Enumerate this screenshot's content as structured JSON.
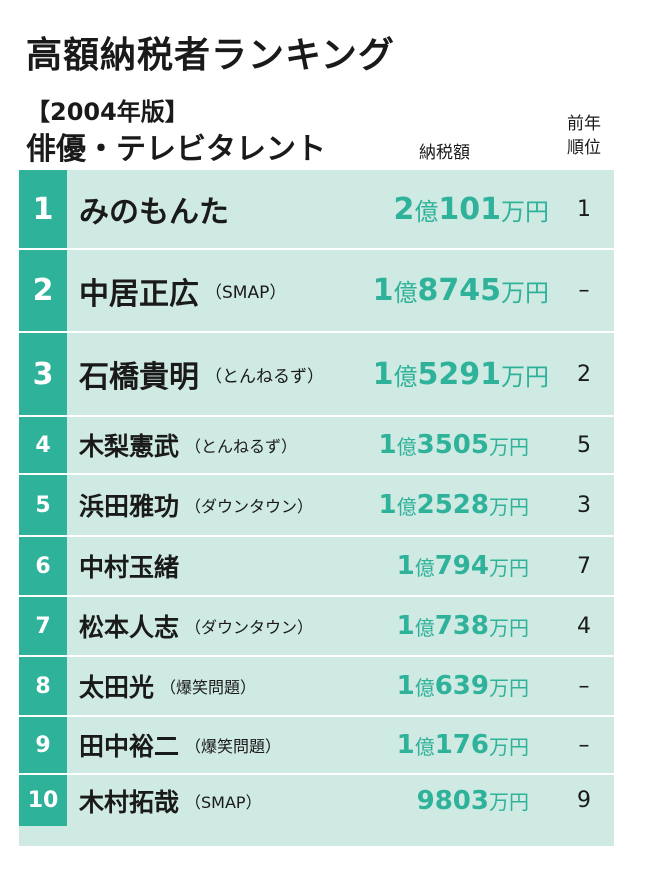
{
  "header": {
    "title": "高額納税者ランキング",
    "year": "【2004年版】",
    "category": "俳優・テレビタレント",
    "col_tax": "納税額",
    "col_prev_line1": "前年",
    "col_prev_line2": "順位"
  },
  "colors": {
    "accent": "#2fb29a",
    "row_bg": "#cfe9e3"
  },
  "rows": [
    {
      "rank": "1",
      "name": "みのもんた",
      "group": "",
      "amount_oku": "2",
      "oku": "億",
      "amount_man": "101",
      "man": "万円",
      "prev": "1"
    },
    {
      "rank": "2",
      "name": "中居正広",
      "group": "（SMAP）",
      "amount_oku": "1",
      "oku": "億",
      "amount_man": "8745",
      "man": "万円",
      "prev": "–"
    },
    {
      "rank": "3",
      "name": "石橋貴明",
      "group": "（とんねるず）",
      "amount_oku": "1",
      "oku": "億",
      "amount_man": "5291",
      "man": "万円",
      "prev": "2"
    },
    {
      "rank": "4",
      "name": "木梨憲武",
      "group": "（とんねるず）",
      "amount_oku": "1",
      "oku": "億",
      "amount_man": "3505",
      "man": "万円",
      "prev": "5"
    },
    {
      "rank": "5",
      "name": "浜田雅功",
      "group": "（ダウンタウン）",
      "amount_oku": "1",
      "oku": "億",
      "amount_man": "2528",
      "man": "万円",
      "prev": "3"
    },
    {
      "rank": "6",
      "name": "中村玉緒",
      "group": "",
      "amount_oku": "1",
      "oku": "億",
      "amount_man": "794",
      "man": "万円",
      "prev": "7"
    },
    {
      "rank": "7",
      "name": "松本人志",
      "group": "（ダウンタウン）",
      "amount_oku": "1",
      "oku": "億",
      "amount_man": "738",
      "man": "万円",
      "prev": "4"
    },
    {
      "rank": "8",
      "name": "太田光",
      "group": "（爆笑問題）",
      "amount_oku": "1",
      "oku": "億",
      "amount_man": "639",
      "man": "万円",
      "prev": "–"
    },
    {
      "rank": "9",
      "name": "田中裕二",
      "group": "（爆笑問題）",
      "amount_oku": "1",
      "oku": "億",
      "amount_man": "176",
      "man": "万円",
      "prev": "–"
    },
    {
      "rank": "10",
      "name": "木村拓哉",
      "group": "（SMAP）",
      "amount_oku": "",
      "oku": "",
      "amount_man": "9803",
      "man": "万円",
      "prev": "9"
    }
  ]
}
